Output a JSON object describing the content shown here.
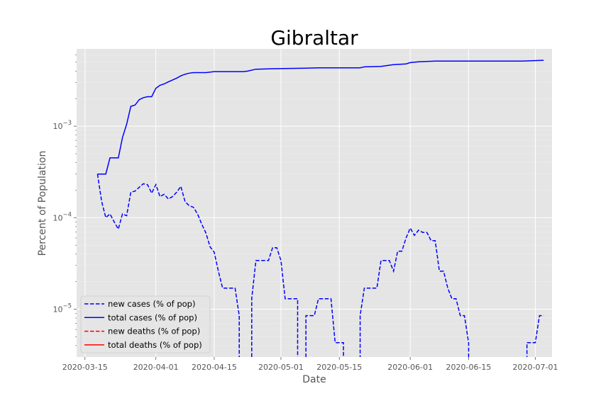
{
  "chart_data": {
    "type": "line",
    "title": "Gibraltar",
    "xlabel": "Date",
    "ylabel": "Percent of Population",
    "yscale": "log",
    "xlim": [
      "2020-03-13",
      "2020-07-05"
    ],
    "ylim": [
      3e-06,
      0.007
    ],
    "grid": true,
    "legend_position": "lower-left",
    "x_ticks": [
      {
        "date": "2020-03-15",
        "label": "2020-03-15"
      },
      {
        "date": "2020-04-01",
        "label": "2020-04-01"
      },
      {
        "date": "2020-04-15",
        "label": "2020-04-15"
      },
      {
        "date": "2020-05-01",
        "label": "2020-05-01"
      },
      {
        "date": "2020-05-15",
        "label": "2020-05-15"
      },
      {
        "date": "2020-06-01",
        "label": "2020-06-01"
      },
      {
        "date": "2020-06-15",
        "label": "2020-06-15"
      },
      {
        "date": "2020-07-01",
        "label": "2020-07-01"
      }
    ],
    "y_ticks": [
      {
        "value": 1e-05,
        "label": "10",
        "exp": "−5"
      },
      {
        "value": 0.0001,
        "label": "10",
        "exp": "−4"
      },
      {
        "value": 0.001,
        "label": "10",
        "exp": "−3"
      }
    ],
    "series": [
      {
        "name": "new cases (% of pop)",
        "color": "#0000ff",
        "dash": "dashed",
        "points": [
          [
            "2020-03-18",
            0.0003
          ],
          [
            "2020-03-19",
            0.00015
          ],
          [
            "2020-03-20",
            0.0001
          ],
          [
            "2020-03-21",
            0.00011
          ],
          [
            "2020-03-22",
            9e-05
          ],
          [
            "2020-03-23",
            7.5e-05
          ],
          [
            "2020-03-24",
            0.00011
          ],
          [
            "2020-03-25",
            0.000105
          ],
          [
            "2020-03-26",
            0.00019
          ],
          [
            "2020-03-27",
            0.000195
          ],
          [
            "2020-03-28",
            0.000215
          ],
          [
            "2020-03-29",
            0.000235
          ],
          [
            "2020-03-30",
            0.00023
          ],
          [
            "2020-03-31",
            0.000185
          ],
          [
            "2020-04-01",
            0.00023
          ],
          [
            "2020-04-02",
            0.00017
          ],
          [
            "2020-04-03",
            0.00018
          ],
          [
            "2020-04-04",
            0.00016
          ],
          [
            "2020-04-05",
            0.00017
          ],
          [
            "2020-04-06",
            0.00019
          ],
          [
            "2020-04-07",
            0.00022
          ],
          [
            "2020-04-08",
            0.00015
          ],
          [
            "2020-04-09",
            0.000135
          ],
          [
            "2020-04-10",
            0.00013
          ],
          [
            "2020-04-11",
            0.00011
          ],
          [
            "2020-04-12",
            8.5e-05
          ],
          [
            "2020-04-13",
            6.8e-05
          ],
          [
            "2020-04-14",
            4.8e-05
          ],
          [
            "2020-04-15",
            4.2e-05
          ],
          [
            "2020-04-16",
            2.6e-05
          ],
          [
            "2020-04-17",
            1.7e-05
          ],
          [
            "2020-04-18",
            1.7e-05
          ],
          [
            "2020-04-19",
            1.7e-05
          ],
          [
            "2020-04-20",
            1.7e-05
          ],
          [
            "2020-04-21",
            8.5e-06
          ],
          [
            "2020-04-21",
            2.5e-06
          ],
          [
            "2020-04-24",
            2.5e-06
          ],
          [
            "2020-04-24",
            1.3e-05
          ],
          [
            "2020-04-25",
            3.4e-05
          ],
          [
            "2020-04-26",
            3.4e-05
          ],
          [
            "2020-04-27",
            3.4e-05
          ],
          [
            "2020-04-28",
            3.4e-05
          ],
          [
            "2020-04-29",
            4.7e-05
          ],
          [
            "2020-04-30",
            4.7e-05
          ],
          [
            "2020-05-01",
            3.4e-05
          ],
          [
            "2020-05-02",
            1.3e-05
          ],
          [
            "2020-05-03",
            1.3e-05
          ],
          [
            "2020-05-04",
            1.3e-05
          ],
          [
            "2020-05-05",
            1.3e-05
          ],
          [
            "2020-05-05",
            2.5e-06
          ],
          [
            "2020-05-07",
            2.5e-06
          ],
          [
            "2020-05-07",
            8.5e-06
          ],
          [
            "2020-05-08",
            8.5e-06
          ],
          [
            "2020-05-09",
            8.5e-06
          ],
          [
            "2020-05-10",
            1.3e-05
          ],
          [
            "2020-05-11",
            1.3e-05
          ],
          [
            "2020-05-12",
            1.3e-05
          ],
          [
            "2020-05-13",
            1.3e-05
          ],
          [
            "2020-05-14",
            4.3e-06
          ],
          [
            "2020-05-15",
            4.3e-06
          ],
          [
            "2020-05-16",
            4.3e-06
          ],
          [
            "2020-05-16",
            2.5e-06
          ],
          [
            "2020-05-20",
            2.5e-06
          ],
          [
            "2020-05-20",
            8.5e-06
          ],
          [
            "2020-05-21",
            1.7e-05
          ],
          [
            "2020-05-22",
            1.7e-05
          ],
          [
            "2020-05-23",
            1.7e-05
          ],
          [
            "2020-05-24",
            1.7e-05
          ],
          [
            "2020-05-25",
            3.4e-05
          ],
          [
            "2020-05-26",
            3.4e-05
          ],
          [
            "2020-05-27",
            3.4e-05
          ],
          [
            "2020-05-28",
            2.6e-05
          ],
          [
            "2020-05-29",
            4.3e-05
          ],
          [
            "2020-05-30",
            4.3e-05
          ],
          [
            "2020-05-31",
            6e-05
          ],
          [
            "2020-06-01",
            7.7e-05
          ],
          [
            "2020-06-02",
            6.4e-05
          ],
          [
            "2020-06-03",
            7.3e-05
          ],
          [
            "2020-06-04",
            6.9e-05
          ],
          [
            "2020-06-05",
            6.9e-05
          ],
          [
            "2020-06-06",
            5.6e-05
          ],
          [
            "2020-06-07",
            5.6e-05
          ],
          [
            "2020-06-08",
            2.6e-05
          ],
          [
            "2020-06-09",
            2.6e-05
          ],
          [
            "2020-06-10",
            1.7e-05
          ],
          [
            "2020-06-11",
            1.3e-05
          ],
          [
            "2020-06-12",
            1.3e-05
          ],
          [
            "2020-06-13",
            8.5e-06
          ],
          [
            "2020-06-14",
            8.5e-06
          ],
          [
            "2020-06-15",
            4.3e-06
          ],
          [
            "2020-06-15",
            2.5e-06
          ],
          [
            "2020-06-29",
            2.5e-06
          ],
          [
            "2020-06-29",
            4.3e-06
          ],
          [
            "2020-06-30",
            4.3e-06
          ],
          [
            "2020-07-01",
            4.3e-06
          ],
          [
            "2020-07-02",
            8.5e-06
          ],
          [
            "2020-07-03",
            8.5e-06
          ]
        ]
      },
      {
        "name": "total cases (% of pop)",
        "color": "#0000ff",
        "dash": "solid",
        "points": [
          [
            "2020-03-18",
            0.0003
          ],
          [
            "2020-03-19",
            0.0003
          ],
          [
            "2020-03-20",
            0.0003
          ],
          [
            "2020-03-21",
            0.00045
          ],
          [
            "2020-03-22",
            0.00045
          ],
          [
            "2020-03-23",
            0.00045
          ],
          [
            "2020-03-24",
            0.00075
          ],
          [
            "2020-03-25",
            0.00105
          ],
          [
            "2020-03-26",
            0.00165
          ],
          [
            "2020-03-27",
            0.0017
          ],
          [
            "2020-03-28",
            0.00195
          ],
          [
            "2020-03-29",
            0.00205
          ],
          [
            "2020-03-30",
            0.0021
          ],
          [
            "2020-03-31",
            0.0021
          ],
          [
            "2020-04-01",
            0.0026
          ],
          [
            "2020-04-02",
            0.0028
          ],
          [
            "2020-04-03",
            0.0029
          ],
          [
            "2020-04-04",
            0.00305
          ],
          [
            "2020-04-05",
            0.0032
          ],
          [
            "2020-04-06",
            0.00335
          ],
          [
            "2020-04-07",
            0.00355
          ],
          [
            "2020-04-08",
            0.0037
          ],
          [
            "2020-04-09",
            0.0038
          ],
          [
            "2020-04-10",
            0.00385
          ],
          [
            "2020-04-11",
            0.00385
          ],
          [
            "2020-04-13",
            0.00385
          ],
          [
            "2020-04-15",
            0.00395
          ],
          [
            "2020-04-20",
            0.00395
          ],
          [
            "2020-04-22",
            0.00395
          ],
          [
            "2020-04-23",
            0.004
          ],
          [
            "2020-04-25",
            0.0042
          ],
          [
            "2020-04-29",
            0.00425
          ],
          [
            "2020-05-07",
            0.0043
          ],
          [
            "2020-05-10",
            0.00435
          ],
          [
            "2020-05-20",
            0.00435
          ],
          [
            "2020-05-21",
            0.00445
          ],
          [
            "2020-05-25",
            0.0045
          ],
          [
            "2020-05-28",
            0.0047
          ],
          [
            "2020-05-31",
            0.0048
          ],
          [
            "2020-06-01",
            0.00495
          ],
          [
            "2020-06-03",
            0.00505
          ],
          [
            "2020-06-05",
            0.0051
          ],
          [
            "2020-06-07",
            0.00515
          ],
          [
            "2020-06-09",
            0.00515
          ],
          [
            "2020-06-28",
            0.00515
          ],
          [
            "2020-06-30",
            0.0052
          ],
          [
            "2020-07-03",
            0.00525
          ]
        ]
      },
      {
        "name": "new deaths (% of pop)",
        "color": "#ff0000",
        "dash": "dashed",
        "points": []
      },
      {
        "name": "total deaths (% of pop)",
        "color": "#ff0000",
        "dash": "solid",
        "points": []
      }
    ]
  }
}
